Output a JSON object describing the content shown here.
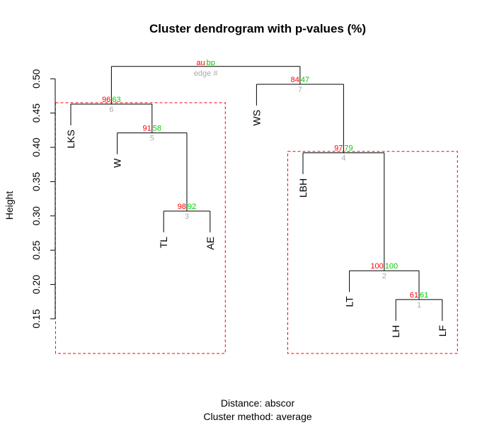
{
  "chart_data": {
    "type": "dendrogram",
    "title": "Cluster dendrogram with p-values (%)",
    "ylabel": "Height",
    "xlabel_lines": [
      "Distance:  abscor",
      "Cluster method: average"
    ],
    "ylim": [
      0.15,
      0.5
    ],
    "yticks": [
      0.15,
      0.2,
      0.25,
      0.3,
      0.35,
      0.4,
      0.45,
      0.5
    ],
    "ytick_labels": [
      "0.15",
      "0.20",
      "0.25",
      "0.30",
      "0.35",
      "0.40",
      "0.45",
      "0.50"
    ],
    "legend": {
      "au": "au",
      "bp": "bp",
      "edge": "edge #"
    },
    "colors": {
      "au": "#ff0000",
      "bp": "#00cc00",
      "edge": "#aaaaaa",
      "rect": "#ff0000",
      "line": "#000000"
    },
    "leaves": [
      "LKS",
      "W",
      "TL",
      "AE",
      "WS",
      "LBH",
      "LT",
      "LH",
      "LF"
    ],
    "merges": [
      {
        "edge": "1",
        "au": "61",
        "bp": "61",
        "height": 0.178,
        "left": "LH",
        "right": "LF"
      },
      {
        "edge": "2",
        "au": "100",
        "bp": "100",
        "height": 0.22,
        "left": "LT",
        "right": "1"
      },
      {
        "edge": "3",
        "au": "98",
        "bp": "92",
        "height": 0.307,
        "left": "TL",
        "right": "AE"
      },
      {
        "edge": "4",
        "au": "97",
        "bp": "79",
        "height": 0.392,
        "left": "LBH",
        "right": "2"
      },
      {
        "edge": "5",
        "au": "91",
        "bp": "58",
        "height": 0.421,
        "left": "W",
        "right": "3"
      },
      {
        "edge": "6",
        "au": "96",
        "bp": "63",
        "height": 0.463,
        "left": "LKS",
        "right": "5"
      },
      {
        "edge": "7",
        "au": "84",
        "bp": "47",
        "height": 0.492,
        "left": "WS",
        "right": "4"
      },
      {
        "edge": "",
        "au": "",
        "bp": "",
        "height": 0.518,
        "left": "6",
        "right": "7"
      }
    ],
    "highlight_clusters": [
      {
        "leaves": [
          "LKS",
          "W",
          "TL",
          "AE"
        ]
      },
      {
        "leaves": [
          "LBH",
          "LT",
          "LH",
          "LF"
        ]
      }
    ]
  }
}
